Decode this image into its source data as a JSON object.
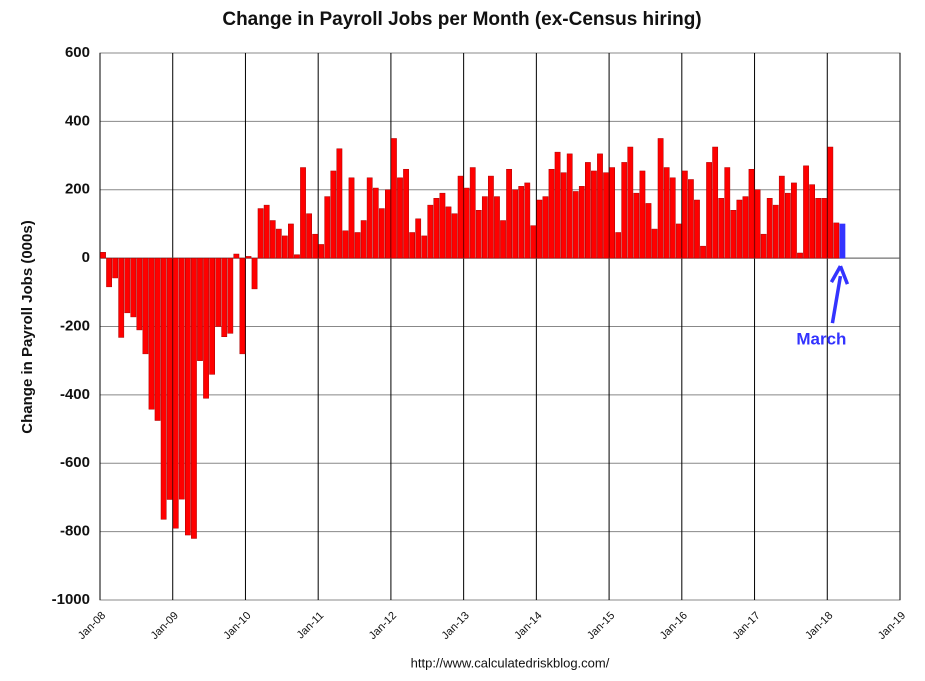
{
  "chart_data": {
    "type": "bar",
    "title": "Change in Payroll Jobs per Month (ex-Census hiring)",
    "y_label": "Change in Payroll Jobs (000s)",
    "source": "http://www.calculatedriskblog.com/",
    "annotation": "March",
    "color": "#ff0000",
    "highlight_color": "#3333ff",
    "highlight_index": 122,
    "values": [
      17,
      -84,
      -58,
      -232,
      -160,
      -172,
      -210,
      -280,
      -442,
      -475,
      -764,
      -706,
      -790,
      -705,
      -810,
      -820,
      -300,
      -410,
      -340,
      -200,
      -230,
      -220,
      12,
      -280,
      5,
      -90,
      145,
      155,
      110,
      85,
      65,
      100,
      10,
      265,
      130,
      70,
      40,
      180,
      255,
      320,
      80,
      235,
      75,
      110,
      235,
      205,
      145,
      200,
      350,
      235,
      260,
      75,
      115,
      65,
      155,
      175,
      190,
      150,
      130,
      240,
      205,
      265,
      140,
      180,
      240,
      180,
      110,
      260,
      200,
      210,
      220,
      95,
      170,
      180,
      260,
      310,
      250,
      305,
      195,
      210,
      280,
      255,
      305,
      250,
      265,
      75,
      280,
      325,
      190,
      255,
      160,
      85,
      350,
      265,
      235,
      100,
      255,
      230,
      170,
      35,
      280,
      325,
      175,
      265,
      140,
      170,
      180,
      260,
      200,
      70,
      175,
      155,
      240,
      190,
      220,
      15,
      270,
      215,
      175,
      175,
      325,
      103,
      100
    ],
    "xlim": [
      0,
      132
    ],
    "xticks": [
      {
        "value": 0,
        "label": "Jan-08"
      },
      {
        "value": 12,
        "label": "Jan-09"
      },
      {
        "value": 24,
        "label": "Jan-10"
      },
      {
        "value": 36,
        "label": "Jan-11"
      },
      {
        "value": 48,
        "label": "Jan-12"
      },
      {
        "value": 60,
        "label": "Jan-13"
      },
      {
        "value": 72,
        "label": "Jan-14"
      },
      {
        "value": 84,
        "label": "Jan-15"
      },
      {
        "value": 96,
        "label": "Jan-16"
      },
      {
        "value": 108,
        "label": "Jan-17"
      },
      {
        "value": 120,
        "label": "Jan-18"
      },
      {
        "value": 132,
        "label": "Jan-19"
      }
    ],
    "ylim": [
      -1000,
      600
    ],
    "yticks": [
      -1000,
      -800,
      -600,
      -400,
      -200,
      0,
      200,
      400,
      600
    ],
    "grid": true
  }
}
